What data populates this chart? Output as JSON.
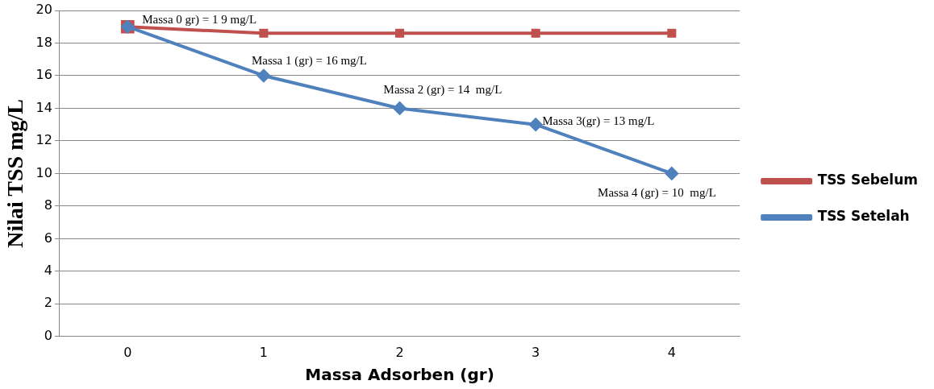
{
  "chart_data": {
    "type": "line",
    "xlabel": "Massa Adsorben (gr)",
    "ylabel": "Nilai TSS mg/L",
    "categories": [
      "0",
      "1",
      "2",
      "3",
      "4"
    ],
    "series": [
      {
        "name": "TSS Sebelum",
        "color": "#c0504d",
        "values": [
          19,
          18.6,
          18.6,
          18.6,
          18.6
        ],
        "marker": "square"
      },
      {
        "name": "TSS Setelah",
        "color": "#4f81bd",
        "values": [
          19,
          16,
          14,
          13,
          10
        ],
        "marker": "diamond"
      }
    ],
    "ylim": [
      0,
      20
    ],
    "yticks": [
      0,
      2,
      4,
      6,
      8,
      10,
      12,
      14,
      16,
      18,
      20
    ],
    "grid": "y",
    "legend": "right",
    "line_style": "solid",
    "annotations": [
      {
        "text": "Massa 0 gr) = 1 9 mg/L",
        "x": "0",
        "y": 19
      },
      {
        "text": "Massa 1 (gr) = 16 mg/L",
        "x": "1",
        "y": 16
      },
      {
        "text": "Massa 2 (gr) = 14  mg/L",
        "x": "2",
        "y": 14
      },
      {
        "text": "Massa 3(gr) = 13 mg/L",
        "x": "3",
        "y": 13
      },
      {
        "text": "Massa 4 (gr) = 10  mg/L",
        "x": "4",
        "y": 10
      }
    ]
  }
}
